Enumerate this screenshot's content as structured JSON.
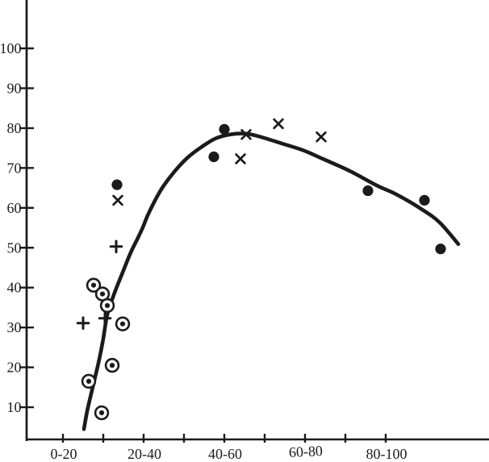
{
  "figure": {
    "background": "#ffffff",
    "ink_color": "#1b1b1b",
    "description": "Scanned scatter plot with fitted curve"
  },
  "chart_data": {
    "type": "scatter",
    "title": "",
    "xlabel": "",
    "ylabel": "",
    "grid": false,
    "legend": "none",
    "x_axis": {
      "tick_labels": [
        "0-20",
        "20-40",
        "40-60",
        "60-80",
        "80-100"
      ],
      "tick_values": [
        10,
        30,
        50,
        70,
        90
      ],
      "minor_tick_values": [
        20,
        40,
        60,
        80
      ],
      "range": [
        0,
        115
      ]
    },
    "y_axis": {
      "tick_labels": [
        "100",
        "90",
        "80",
        "70",
        "60",
        "50",
        "40",
        "30",
        "20",
        "10"
      ],
      "tick_values": [
        100,
        90,
        80,
        70,
        60,
        50,
        40,
        30,
        20,
        10
      ],
      "range": [
        2,
        112
      ]
    },
    "series": [
      {
        "name": "filled-circle-points",
        "marker": "filled-circle",
        "points": [
          [
            23.4,
            65.8
          ],
          [
            50.0,
            79.7
          ],
          [
            47.4,
            72.8
          ],
          [
            85.6,
            64.3
          ],
          [
            99.6,
            61.9
          ],
          [
            103.6,
            49.7
          ]
        ]
      },
      {
        "name": "cross-points",
        "marker": "cross",
        "points": [
          [
            23.6,
            61.9
          ],
          [
            54.0,
            72.3
          ],
          [
            55.4,
            78.4
          ],
          [
            63.4,
            81.1
          ],
          [
            74.0,
            77.8
          ]
        ]
      },
      {
        "name": "plus-points",
        "marker": "plus",
        "points": [
          [
            23.2,
            50.3
          ],
          [
            20.4,
            32.3
          ],
          [
            15.0,
            31.1
          ]
        ]
      },
      {
        "name": "circled-dot-points",
        "marker": "circled-dot",
        "points": [
          [
            17.6,
            40.6
          ],
          [
            19.8,
            38.4
          ],
          [
            21.0,
            35.5
          ],
          [
            24.8,
            30.9
          ],
          [
            22.2,
            20.5
          ],
          [
            16.4,
            16.5
          ],
          [
            19.6,
            8.6
          ]
        ]
      }
    ],
    "fit_curve": {
      "name": "fitted-curve",
      "points": [
        [
          15.2,
          4.5
        ],
        [
          16.0,
          9.0
        ],
        [
          17.4,
          15.1
        ],
        [
          18.8,
          21.1
        ],
        [
          20.0,
          27.2
        ],
        [
          21.0,
          33.3
        ],
        [
          22.8,
          38.7
        ],
        [
          24.8,
          43.8
        ],
        [
          26.8,
          48.8
        ],
        [
          28.4,
          52.1
        ],
        [
          29.8,
          55.1
        ],
        [
          31.0,
          58.1
        ],
        [
          33.0,
          62.2
        ],
        [
          35.0,
          65.6
        ],
        [
          37.8,
          69.3
        ],
        [
          41.0,
          72.7
        ],
        [
          44.4,
          75.3
        ],
        [
          47.8,
          77.4
        ],
        [
          51.4,
          78.4
        ],
        [
          55.4,
          78.6
        ],
        [
          59.0,
          77.8
        ],
        [
          64.4,
          76.1
        ],
        [
          69.4,
          74.5
        ],
        [
          74.4,
          72.3
        ],
        [
          81.0,
          69.3
        ],
        [
          87.8,
          65.6
        ],
        [
          92.6,
          63.4
        ],
        [
          99.0,
          59.6
        ],
        [
          103.4,
          56.3
        ],
        [
          108.0,
          50.9
        ]
      ]
    }
  }
}
